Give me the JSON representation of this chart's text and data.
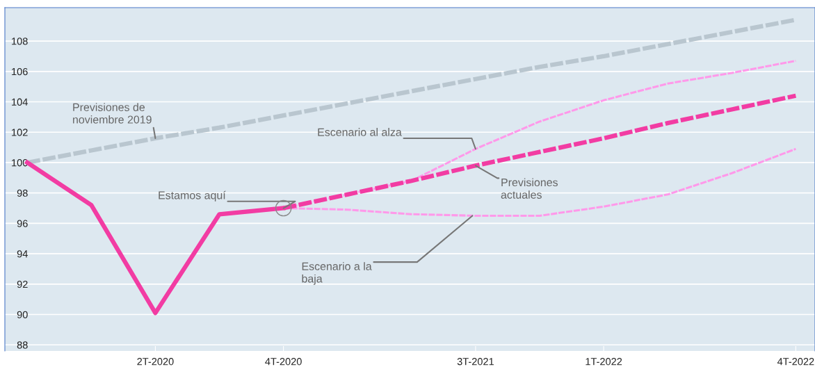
{
  "chart_data": {
    "type": "line",
    "categories": [
      null,
      null,
      "2T-2020",
      null,
      "4T-2020",
      null,
      null,
      "3T-2021",
      null,
      "1T-2022",
      null,
      null,
      "4T-2022"
    ],
    "ylim": [
      87.6,
      110.2
    ],
    "yticks": [
      88,
      90,
      92,
      94,
      96,
      98,
      100,
      102,
      104,
      106,
      108
    ],
    "grid": "y",
    "legend": false,
    "series": [
      {
        "color": "#b9c6cf",
        "line_style": "dashed",
        "values": [
          100,
          100.8,
          101.6,
          102.3,
          103.1,
          103.9,
          104.7,
          105.5,
          106.3,
          107.0,
          107.8,
          108.6,
          109.4
        ]
      },
      {
        "color": "#ff99ea",
        "line_style": "dashed",
        "values": [
          null,
          null,
          null,
          null,
          97.0,
          97.9,
          98.8,
          100.9,
          102.7,
          104.1,
          105.2,
          105.9,
          106.7
        ]
      },
      {
        "color": "#ff99ea",
        "line_style": "dashed",
        "values": [
          null,
          null,
          null,
          null,
          97.0,
          96.9,
          96.6,
          96.5,
          96.5,
          97.1,
          97.9,
          99.3,
          100.9
        ]
      },
      {
        "color": "#f23ca3",
        "line_style": "dashed",
        "values": [
          null,
          null,
          null,
          null,
          97.0,
          97.9,
          98.8,
          99.8,
          100.7,
          101.6,
          102.6,
          103.5,
          104.4
        ]
      },
      {
        "color": "#f23ca3",
        "line_style": "solid",
        "values": [
          100,
          97.2,
          90.1,
          96.6,
          97.0,
          null,
          null,
          null,
          null,
          null,
          null,
          null,
          null
        ]
      }
    ],
    "annotations": [
      {
        "text": "Previsiones de\nnoviembre 2019",
        "x": "2T-2020",
        "y": 101.6
      },
      {
        "text": "Escenario al alza",
        "x": "3T-2021",
        "y": 100.9
      },
      {
        "text": "Previsiones\nactuales",
        "x": "3T-2021",
        "y": 99.8
      },
      {
        "text": "Estamos aquí",
        "x": "4T-2020",
        "y": 97.0
      },
      {
        "text": "Escenario a la\nbaja",
        "x": "3T-2021",
        "y": 96.5
      }
    ]
  }
}
